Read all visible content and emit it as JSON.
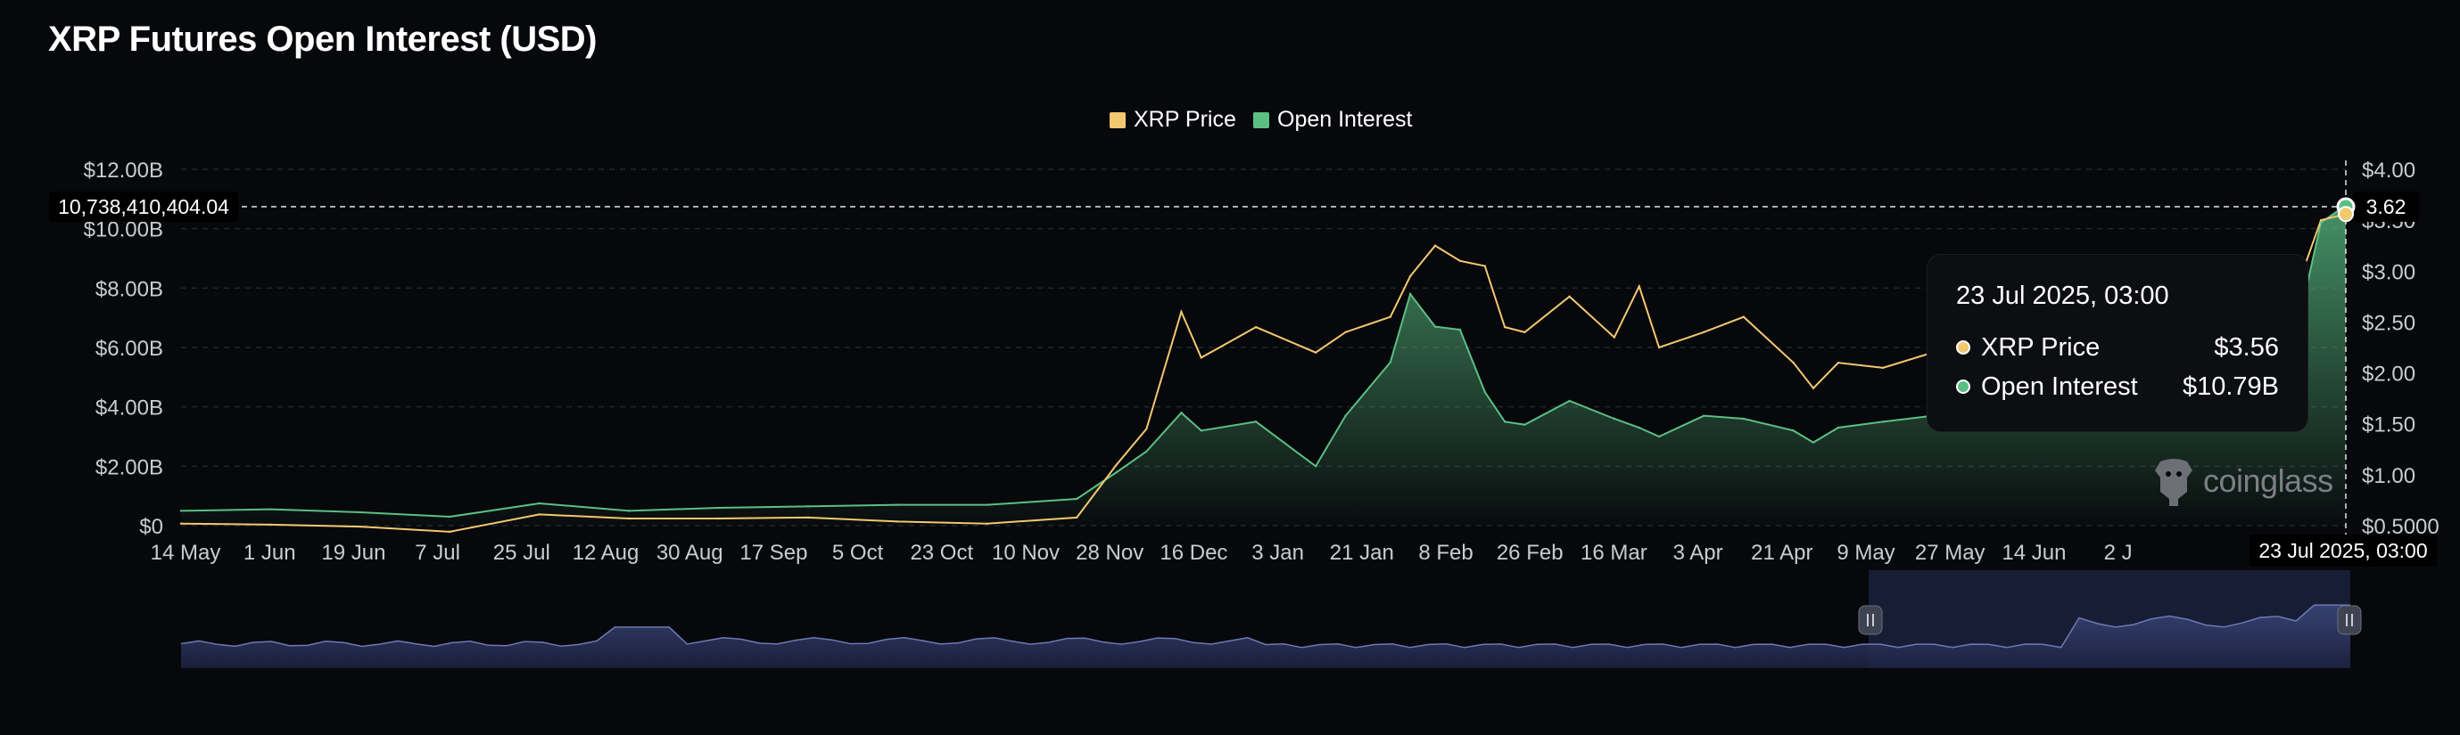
{
  "title": "XRP Futures Open Interest (USD)",
  "colors": {
    "background": "#07080b",
    "price": "#f2c870",
    "open_interest": "#5bbf84",
    "navigator_fill": "#2a3358",
    "navigator_line": "#6d79b8"
  },
  "chart_data": {
    "type": "area",
    "title": "XRP Futures Open Interest (USD)",
    "legend_position": "top-center",
    "grid": true,
    "x_tick_labels": [
      "14 May",
      "1 Jun",
      "19 Jun",
      "7 Jul",
      "25 Jul",
      "12 Aug",
      "30 Aug",
      "17 Sep",
      "5 Oct",
      "23 Oct",
      "10 Nov",
      "28 Nov",
      "16 Dec",
      "3 Jan",
      "21 Jan",
      "8 Feb",
      "26 Feb",
      "16 Mar",
      "3 Apr",
      "21 Apr",
      "9 May",
      "27 May",
      "14 Jun",
      "2 J"
    ],
    "left_axis": {
      "ticks": [
        "$0",
        "$2.00B",
        "$4.00B",
        "$6.00B",
        "$8.00B",
        "$10.00B",
        "$12.00B"
      ],
      "range": [
        0,
        12000000000
      ]
    },
    "right_axis": {
      "ticks": [
        "$0.5000",
        "$1.00",
        "$1.50",
        "$2.00",
        "$2.50",
        "$3.00",
        "$3.50",
        "$4.00"
      ],
      "range": [
        0.5,
        4.0
      ]
    },
    "crosshair": {
      "left_value": "10,738,410,404.04",
      "right_value": "3.62",
      "x_label": "23 Jul 2025, 03:00"
    },
    "series": [
      {
        "name": "XRP Price",
        "axis": "right",
        "x": [
          "2024-05-14",
          "2024-06-01",
          "2024-06-19",
          "2024-07-07",
          "2024-07-25",
          "2024-08-12",
          "2024-08-30",
          "2024-09-17",
          "2024-10-05",
          "2024-10-23",
          "2024-11-10",
          "2024-11-18",
          "2024-11-24",
          "2024-12-01",
          "2024-12-05",
          "2024-12-16",
          "2024-12-28",
          "2025-01-03",
          "2025-01-12",
          "2025-01-16",
          "2025-01-21",
          "2025-01-26",
          "2025-01-31",
          "2025-02-04",
          "2025-02-08",
          "2025-02-17",
          "2025-02-26",
          "2025-03-03",
          "2025-03-07",
          "2025-03-16",
          "2025-03-24",
          "2025-04-03",
          "2025-04-07",
          "2025-04-12",
          "2025-04-21",
          "2025-05-01",
          "2025-05-09",
          "2025-05-14",
          "2025-05-27",
          "2025-06-14",
          "2025-06-22",
          "2025-07-02",
          "2025-07-10",
          "2025-07-14",
          "2025-07-18",
          "2025-07-23"
        ],
        "values": [
          0.52,
          0.51,
          0.49,
          0.44,
          0.61,
          0.57,
          0.57,
          0.58,
          0.54,
          0.52,
          0.58,
          1.1,
          1.45,
          2.6,
          2.15,
          2.45,
          2.2,
          2.4,
          2.55,
          2.95,
          3.25,
          3.1,
          3.05,
          2.45,
          2.4,
          2.75,
          2.35,
          2.85,
          2.25,
          2.4,
          2.55,
          2.1,
          1.85,
          2.1,
          2.05,
          2.2,
          2.35,
          2.45,
          2.3,
          2.2,
          2.02,
          2.28,
          2.55,
          2.95,
          3.5,
          3.56
        ]
      },
      {
        "name": "Open Interest",
        "axis": "left",
        "x": [
          "2024-05-14",
          "2024-06-01",
          "2024-06-19",
          "2024-07-07",
          "2024-07-25",
          "2024-08-12",
          "2024-08-30",
          "2024-09-17",
          "2024-10-05",
          "2024-10-23",
          "2024-11-10",
          "2024-11-18",
          "2024-11-24",
          "2024-12-01",
          "2024-12-05",
          "2024-12-16",
          "2024-12-28",
          "2025-01-03",
          "2025-01-12",
          "2025-01-16",
          "2025-01-21",
          "2025-01-26",
          "2025-01-31",
          "2025-02-04",
          "2025-02-08",
          "2025-02-17",
          "2025-02-26",
          "2025-03-03",
          "2025-03-07",
          "2025-03-16",
          "2025-03-24",
          "2025-04-03",
          "2025-04-07",
          "2025-04-12",
          "2025-04-21",
          "2025-05-01",
          "2025-05-09",
          "2025-05-14",
          "2025-05-27",
          "2025-06-14",
          "2025-06-22",
          "2025-07-02",
          "2025-07-10",
          "2025-07-14",
          "2025-07-18",
          "2025-07-23"
        ],
        "values": [
          500000000,
          550000000,
          450000000,
          300000000,
          750000000,
          500000000,
          600000000,
          650000000,
          700000000,
          700000000,
          900000000,
          1800000000,
          2500000000,
          3800000000,
          3200000000,
          3500000000,
          2000000000,
          3700000000,
          5500000000,
          7800000000,
          6700000000,
          6600000000,
          4500000000,
          3500000000,
          3400000000,
          4200000000,
          3600000000,
          3300000000,
          3000000000,
          3700000000,
          3600000000,
          3200000000,
          2800000000,
          3300000000,
          3500000000,
          3700000000,
          3900000000,
          4300000000,
          4200000000,
          4000000000,
          3600000000,
          4300000000,
          5300000000,
          7200000000,
          10200000000,
          10790000000
        ]
      }
    ],
    "tooltip": {
      "time": "23 Jul 2025, 03:00",
      "rows": [
        {
          "name": "XRP Price",
          "value": "$3.56"
        },
        {
          "name": "Open Interest",
          "value": "$10.79B"
        }
      ]
    }
  },
  "watermark": "coinglass"
}
